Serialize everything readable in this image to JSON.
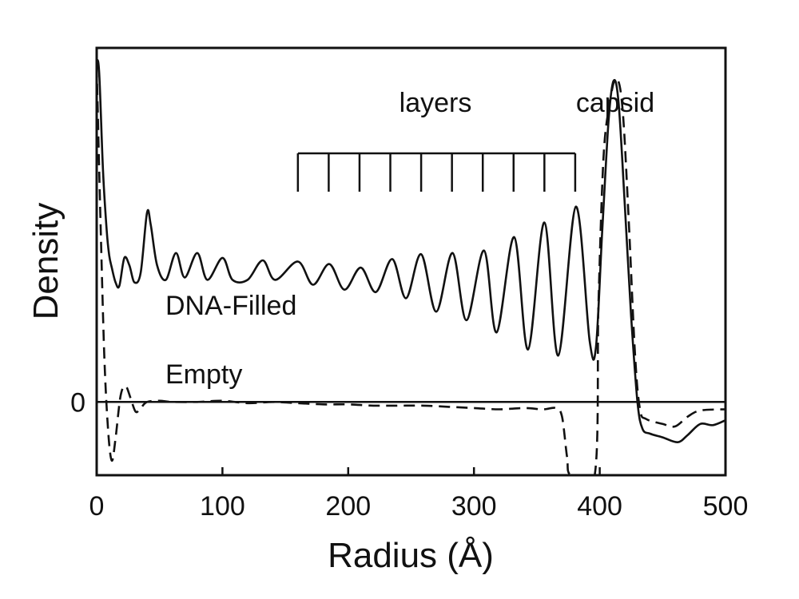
{
  "chart_data": {
    "type": "line",
    "title": "",
    "xlabel": "Radius (Å)",
    "ylabel": "Density",
    "xlim": [
      0,
      500
    ],
    "ylim": [
      -0.6,
      2.9
    ],
    "x_ticks": [
      0,
      100,
      200,
      300,
      400,
      500
    ],
    "x_tick_labels": [
      "0",
      "100",
      "200",
      "300",
      "400",
      "500"
    ],
    "y_ticks": [
      0
    ],
    "y_tick_labels": [
      "0"
    ],
    "zero_line": true,
    "grid": false,
    "legend": "none",
    "series": [
      {
        "name": "DNA-Filled",
        "style": "solid",
        "points": [
          [
            0,
            2.8
          ],
          [
            2,
            2.7
          ],
          [
            5,
            1.9
          ],
          [
            8,
            1.4
          ],
          [
            10,
            1.2
          ],
          [
            12,
            1.1
          ],
          [
            15,
            0.98
          ],
          [
            18,
            0.95
          ],
          [
            22,
            1.18
          ],
          [
            26,
            1.12
          ],
          [
            30,
            0.98
          ],
          [
            35,
            1.06
          ],
          [
            40,
            1.55
          ],
          [
            43,
            1.45
          ],
          [
            48,
            1.12
          ],
          [
            55,
            1.0
          ],
          [
            63,
            1.22
          ],
          [
            70,
            1.02
          ],
          [
            80,
            1.22
          ],
          [
            88,
            1.0
          ],
          [
            100,
            1.18
          ],
          [
            108,
            1.0
          ],
          [
            120,
            1.0
          ],
          [
            132,
            1.16
          ],
          [
            142,
            1.0
          ],
          [
            160,
            1.15
          ],
          [
            172,
            0.96
          ],
          [
            185,
            1.13
          ],
          [
            197,
            0.92
          ],
          [
            210,
            1.1
          ],
          [
            222,
            0.9
          ],
          [
            235,
            1.17
          ],
          [
            246,
            0.85
          ],
          [
            258,
            1.21
          ],
          [
            270,
            0.74
          ],
          [
            283,
            1.22
          ],
          [
            294,
            0.67
          ],
          [
            308,
            1.24
          ],
          [
            318,
            0.57
          ],
          [
            332,
            1.35
          ],
          [
            343,
            0.43
          ],
          [
            356,
            1.47
          ],
          [
            367,
            0.38
          ],
          [
            381,
            1.6
          ],
          [
            392,
            0.5
          ],
          [
            397,
            0.45
          ],
          [
            402,
            1.4
          ],
          [
            407,
            2.3
          ],
          [
            411,
            2.63
          ],
          [
            415,
            2.45
          ],
          [
            420,
            1.6
          ],
          [
            425,
            0.7
          ],
          [
            430,
            0.0
          ],
          [
            434,
            -0.22
          ],
          [
            440,
            -0.26
          ],
          [
            450,
            -0.29
          ],
          [
            462,
            -0.33
          ],
          [
            470,
            -0.27
          ],
          [
            480,
            -0.18
          ],
          [
            490,
            -0.19
          ],
          [
            500,
            -0.15
          ]
        ]
      },
      {
        "name": "Empty",
        "style": "dashed",
        "points": [
          [
            0,
            2.75
          ],
          [
            3,
            1.5
          ],
          [
            6,
            0.4
          ],
          [
            9,
            -0.22
          ],
          [
            12,
            -0.48
          ],
          [
            15,
            -0.3
          ],
          [
            19,
            0.05
          ],
          [
            23,
            0.13
          ],
          [
            27,
            0.03
          ],
          [
            31,
            -0.08
          ],
          [
            35,
            -0.05
          ],
          [
            40,
            0.0
          ],
          [
            50,
            0.01
          ],
          [
            60,
            0.0
          ],
          [
            80,
            0.0
          ],
          [
            100,
            0.01
          ],
          [
            120,
            -0.01
          ],
          [
            140,
            0.0
          ],
          [
            160,
            -0.01
          ],
          [
            180,
            -0.02
          ],
          [
            200,
            -0.02
          ],
          [
            220,
            -0.03
          ],
          [
            240,
            -0.03
          ],
          [
            260,
            -0.03
          ],
          [
            280,
            -0.04
          ],
          [
            300,
            -0.05
          ],
          [
            320,
            -0.06
          ],
          [
            340,
            -0.05
          ],
          [
            355,
            -0.06
          ],
          [
            365,
            -0.05
          ],
          [
            370,
            -0.12
          ],
          [
            374,
            -0.45
          ],
          [
            377,
            -0.62
          ],
          [
            396,
            -0.62
          ],
          [
            399,
            0.8
          ],
          [
            403,
            2.0
          ],
          [
            408,
            2.45
          ],
          [
            413,
            2.65
          ],
          [
            418,
            2.42
          ],
          [
            423,
            1.5
          ],
          [
            428,
            0.4
          ],
          [
            432,
            -0.06
          ],
          [
            437,
            -0.14
          ],
          [
            450,
            -0.18
          ],
          [
            460,
            -0.2
          ],
          [
            470,
            -0.12
          ],
          [
            480,
            -0.07
          ],
          [
            500,
            -0.06
          ]
        ]
      }
    ],
    "annotations": {
      "layers_label": "layers",
      "capsid_label": "capsid",
      "filled_label": "DNA-Filled",
      "empty_label": "Empty",
      "layer_ticks_x": [
        160,
        184.5,
        209,
        233.5,
        258,
        282.5,
        307,
        331.5,
        356,
        380.5
      ]
    }
  }
}
